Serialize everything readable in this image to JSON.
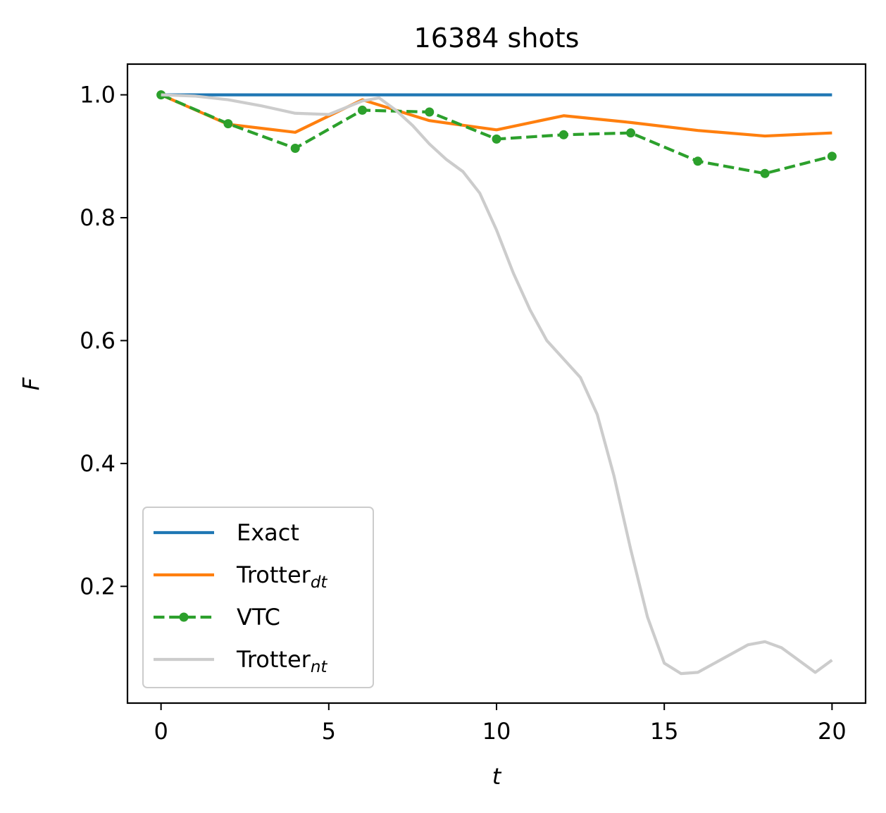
{
  "chart_data": {
    "type": "line",
    "title": "16384 shots",
    "xlabel": "t",
    "ylabel": "F",
    "xlim": [
      -1,
      21
    ],
    "ylim": [
      0.01,
      1.05
    ],
    "xticks": [
      0,
      5,
      10,
      15,
      20
    ],
    "xtick_labels": [
      "0",
      "5",
      "10",
      "15",
      "20"
    ],
    "yticks": [
      0.2,
      0.4,
      0.6,
      0.8,
      1.0
    ],
    "ytick_labels": [
      "0.2",
      "0.4",
      "0.6",
      "0.8",
      "1.0"
    ],
    "grid": false,
    "legend_position": "lower-left",
    "series": [
      {
        "name": "Exact",
        "name_base": "Exact",
        "name_sub": "",
        "color": "#1f77b4",
        "style": "solid",
        "markers": false,
        "x": [
          0,
          20
        ],
        "y": [
          1.0,
          1.0
        ]
      },
      {
        "name": "Trotter_dt",
        "name_base": "Trotter",
        "name_sub": "dt",
        "color": "#ff7f0e",
        "style": "solid",
        "markers": false,
        "x": [
          0,
          2,
          4,
          6,
          8,
          10,
          12,
          14,
          16,
          18,
          20
        ],
        "y": [
          1.0,
          0.952,
          0.939,
          0.992,
          0.958,
          0.943,
          0.966,
          0.955,
          0.942,
          0.933,
          0.938
        ]
      },
      {
        "name": "VTC",
        "name_base": "VTC",
        "name_sub": "",
        "color": "#2ca02c",
        "style": "dashed",
        "markers": true,
        "x": [
          0,
          2,
          4,
          6,
          8,
          10,
          12,
          14,
          16,
          18,
          20
        ],
        "y": [
          1.0,
          0.953,
          0.913,
          0.975,
          0.972,
          0.928,
          0.935,
          0.938,
          0.892,
          0.872,
          0.9
        ]
      },
      {
        "name": "Trotter_nt",
        "name_base": "Trotter",
        "name_sub": "nt",
        "color": "#cccccc",
        "style": "solid",
        "markers": false,
        "x": [
          0,
          1,
          2,
          3,
          4,
          5,
          6,
          6.5,
          7,
          7.5,
          8,
          8.5,
          9,
          9.5,
          10,
          10.5,
          11,
          11.5,
          12,
          12.5,
          13,
          13.5,
          14,
          14.5,
          15,
          15.5,
          16,
          16.5,
          17,
          17.5,
          18,
          18.5,
          19,
          19.5,
          20
        ],
        "y": [
          1.0,
          0.998,
          0.992,
          0.982,
          0.97,
          0.968,
          0.99,
          0.995,
          0.975,
          0.95,
          0.92,
          0.895,
          0.875,
          0.84,
          0.78,
          0.71,
          0.65,
          0.6,
          0.57,
          0.54,
          0.48,
          0.38,
          0.26,
          0.15,
          0.075,
          0.058,
          0.06,
          0.075,
          0.09,
          0.105,
          0.11,
          0.1,
          0.08,
          0.06,
          0.08
        ]
      }
    ]
  }
}
